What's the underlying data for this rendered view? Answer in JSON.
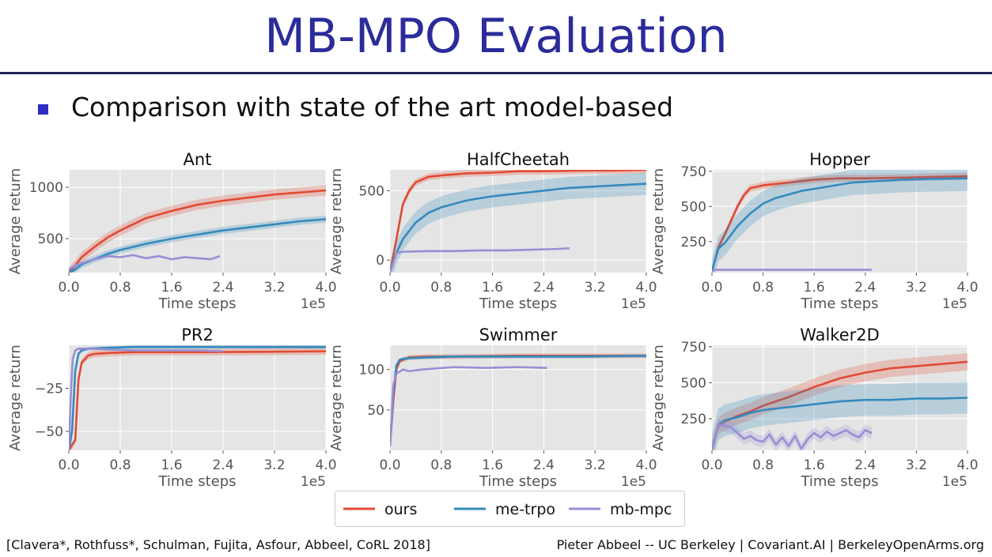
{
  "slide": {
    "title": "MB-MPO Evaluation",
    "bullet": "Comparison with state of the art model-based",
    "citation": "[Clavera*, Rothfuss*, Schulman, Fujita, Asfour, Abbeel, CoRL 2018]",
    "credit": "Pieter Abbeel -- UC Berkeley | Covariant.AI | BerkeleyOpenArms.org"
  },
  "legend": [
    {
      "name": "ours",
      "color": "#e24a33"
    },
    {
      "name": "me-trpo",
      "color": "#348abd"
    },
    {
      "name": "mb-mpc",
      "color": "#988ed5"
    }
  ],
  "chart_data": [
    {
      "type": "line",
      "title": "Ant",
      "xlabel": "Time steps",
      "ylabel": "Average return",
      "x_multiplier": "1e5",
      "xlim": [
        0.0,
        4.0
      ],
      "ylim": [
        170,
        1170
      ],
      "xticks": [
        0.0,
        0.8,
        1.6,
        2.4,
        3.2,
        4.0
      ],
      "xtick_labels": [
        "0.0",
        "0.8",
        "1.6",
        "2.4",
        "3.2",
        "4.0"
      ],
      "yticks": [
        500,
        1000
      ],
      "ytick_labels": [
        "500",
        "1000"
      ],
      "series": [
        {
          "name": "ours",
          "x": [
            0.0,
            0.1,
            0.2,
            0.4,
            0.6,
            0.8,
            1.0,
            1.2,
            1.6,
            2.0,
            2.4,
            2.8,
            3.2,
            3.6,
            4.0
          ],
          "y": [
            170,
            240,
            320,
            420,
            510,
            580,
            640,
            700,
            770,
            830,
            870,
            900,
            930,
            950,
            970
          ],
          "band": 50
        },
        {
          "name": "me-trpo",
          "x": [
            0.0,
            0.1,
            0.2,
            0.4,
            0.6,
            0.8,
            1.0,
            1.2,
            1.6,
            2.0,
            2.4,
            2.8,
            3.2,
            3.6,
            4.0
          ],
          "y": [
            170,
            200,
            250,
            300,
            350,
            390,
            420,
            450,
            500,
            540,
            580,
            610,
            640,
            670,
            690
          ],
          "band": 35
        },
        {
          "name": "mb-mpc",
          "x": [
            0.0,
            0.1,
            0.2,
            0.4,
            0.6,
            0.8,
            1.0,
            1.2,
            1.4,
            1.6,
            1.8,
            2.0,
            2.2,
            2.35
          ],
          "y": [
            200,
            240,
            260,
            300,
            330,
            320,
            340,
            310,
            330,
            300,
            320,
            310,
            300,
            330
          ],
          "band": 0
        }
      ]
    },
    {
      "type": "line",
      "title": "HalfCheetah",
      "xlabel": "Time steps",
      "ylabel": "Average return",
      "x_multiplier": "1e5",
      "xlim": [
        0.0,
        4.0
      ],
      "ylim": [
        -90,
        650
      ],
      "xticks": [
        0.0,
        0.8,
        1.6,
        2.4,
        3.2,
        4.0
      ],
      "xtick_labels": [
        "0.0",
        "0.8",
        "1.6",
        "2.4",
        "3.2",
        "4.0"
      ],
      "yticks": [
        0,
        500
      ],
      "ytick_labels": [
        "0",
        "500"
      ],
      "series": [
        {
          "name": "ours",
          "x": [
            0.0,
            0.1,
            0.2,
            0.3,
            0.4,
            0.6,
            0.8,
            1.2,
            1.6,
            2.0,
            2.4,
            3.0,
            3.5,
            4.0
          ],
          "y": [
            -90,
            150,
            400,
            500,
            560,
            600,
            610,
            625,
            630,
            640,
            640,
            645,
            645,
            650
          ],
          "band": 25
        },
        {
          "name": "me-trpo",
          "x": [
            0.0,
            0.1,
            0.2,
            0.4,
            0.6,
            0.8,
            1.2,
            1.6,
            2.0,
            2.4,
            2.8,
            3.2,
            3.6,
            4.0
          ],
          "y": [
            -90,
            50,
            150,
            270,
            340,
            380,
            430,
            460,
            480,
            500,
            520,
            530,
            540,
            550
          ],
          "band": 80
        },
        {
          "name": "mb-mpc",
          "x": [
            0.0,
            0.1,
            0.2,
            0.6,
            1.0,
            1.4,
            1.8,
            2.2,
            2.6,
            2.8
          ],
          "y": [
            -90,
            50,
            60,
            65,
            65,
            70,
            70,
            75,
            80,
            85
          ],
          "band": 0
        }
      ]
    },
    {
      "type": "line",
      "title": "Hopper",
      "xlabel": "Time steps",
      "ylabel": "Average return",
      "x_multiplier": "1e5",
      "xlim": [
        0.0,
        4.0
      ],
      "ylim": [
        30,
        760
      ],
      "xticks": [
        0.0,
        0.8,
        1.6,
        2.4,
        3.2,
        4.0
      ],
      "xtick_labels": [
        "0.0",
        "0.8",
        "1.6",
        "2.4",
        "3.2",
        "4.0"
      ],
      "yticks": [
        250,
        500,
        750
      ],
      "ytick_labels": [
        "250",
        "500",
        "750"
      ],
      "series": [
        {
          "name": "ours",
          "x": [
            0.0,
            0.1,
            0.2,
            0.3,
            0.4,
            0.5,
            0.6,
            0.8,
            1.2,
            1.6,
            2.0,
            2.4,
            3.0,
            3.5,
            4.0
          ],
          "y": [
            40,
            210,
            300,
            400,
            500,
            580,
            630,
            650,
            670,
            690,
            700,
            700,
            705,
            710,
            715
          ],
          "band": 25
        },
        {
          "name": "me-trpo",
          "x": [
            0.0,
            0.1,
            0.2,
            0.3,
            0.4,
            0.6,
            0.8,
            1.0,
            1.4,
            1.8,
            2.2,
            2.6,
            3.0,
            3.4,
            4.0
          ],
          "y": [
            40,
            200,
            240,
            300,
            360,
            450,
            520,
            560,
            610,
            640,
            670,
            680,
            690,
            695,
            700
          ],
          "band": 90
        },
        {
          "name": "mb-mpc",
          "x": [
            0.0,
            0.05,
            2.5
          ],
          "y": [
            40,
            50,
            50
          ],
          "band": 0
        }
      ]
    },
    {
      "type": "line",
      "title": "PR2",
      "xlabel": "Time steps",
      "ylabel": "Average return",
      "x_multiplier": "1e5",
      "xlim": [
        0.0,
        4.0
      ],
      "ylim": [
        -61,
        0
      ],
      "xticks": [
        0.0,
        0.8,
        1.6,
        2.4,
        3.2,
        4.0
      ],
      "xtick_labels": [
        "0.0",
        "0.8",
        "1.6",
        "2.4",
        "3.2",
        "4.0"
      ],
      "yticks": [
        -25,
        -50
      ],
      "ytick_labels": [
        "−25",
        "−50"
      ],
      "series": [
        {
          "name": "ours",
          "x": [
            0.0,
            0.1,
            0.15,
            0.2,
            0.3,
            0.4,
            0.6,
            1.0,
            2.0,
            3.0,
            4.0
          ],
          "y": [
            -61,
            -55,
            -20,
            -10,
            -6,
            -5,
            -4.5,
            -4,
            -4,
            -3.8,
            -3.5
          ],
          "band": 2
        },
        {
          "name": "me-trpo",
          "x": [
            0.0,
            0.05,
            0.1,
            0.15,
            0.2,
            0.3,
            0.6,
            1.0,
            2.0,
            3.0,
            4.0
          ],
          "y": [
            -61,
            -50,
            -15,
            -5,
            -3,
            -2,
            -1.5,
            -1,
            -1,
            -1,
            -1
          ],
          "band": 1
        },
        {
          "name": "mb-mpc",
          "x": [
            0.0,
            0.03,
            0.06,
            0.1,
            0.15,
            0.3,
            1.0,
            2.0,
            2.4
          ],
          "y": [
            -61,
            -30,
            -8,
            -3,
            -2,
            -2,
            -3,
            -3,
            -3.5
          ],
          "band": 0
        }
      ]
    },
    {
      "type": "line",
      "title": "Swimmer",
      "xlabel": "Time steps",
      "ylabel": "Average return",
      "x_multiplier": "1e5",
      "xlim": [
        0.0,
        4.0
      ],
      "ylim": [
        0,
        130
      ],
      "xticks": [
        0.0,
        0.8,
        1.6,
        2.4,
        3.2,
        4.0
      ],
      "xtick_labels": [
        "0.0",
        "0.8",
        "1.6",
        "2.4",
        "3.2",
        "4.0"
      ],
      "yticks": [
        50,
        100
      ],
      "ytick_labels": [
        "50",
        "100"
      ],
      "series": [
        {
          "name": "ours",
          "x": [
            0.0,
            0.05,
            0.1,
            0.15,
            0.2,
            0.3,
            0.6,
            1.0,
            2.0,
            3.0,
            4.0
          ],
          "y": [
            5,
            60,
            100,
            110,
            112,
            115,
            116,
            116,
            117,
            117,
            117
          ],
          "band": 3
        },
        {
          "name": "me-trpo",
          "x": [
            0.0,
            0.05,
            0.1,
            0.15,
            0.2,
            0.3,
            0.6,
            1.0,
            2.0,
            3.0,
            4.0
          ],
          "y": [
            5,
            70,
            105,
            112,
            113,
            114,
            115,
            116,
            116,
            116,
            117
          ],
          "band": 2
        },
        {
          "name": "mb-mpc",
          "x": [
            0.0,
            0.05,
            0.1,
            0.2,
            0.3,
            0.5,
            1.0,
            1.5,
            2.0,
            2.45
          ],
          "y": [
            5,
            80,
            95,
            100,
            98,
            100,
            103,
            102,
            103,
            102
          ],
          "band": 0
        }
      ]
    },
    {
      "type": "line",
      "title": "Walker2D",
      "xlabel": "Time steps",
      "ylabel": "Average return",
      "x_multiplier": "1e5",
      "xlim": [
        0.0,
        4.0
      ],
      "ylim": [
        30,
        760
      ],
      "xticks": [
        0.0,
        0.8,
        1.6,
        2.4,
        3.2,
        4.0
      ],
      "xtick_labels": [
        "0.0",
        "0.8",
        "1.6",
        "2.4",
        "3.2",
        "4.0"
      ],
      "yticks": [
        250,
        500,
        750
      ],
      "ytick_labels": [
        "250",
        "500",
        "750"
      ],
      "series": [
        {
          "name": "ours",
          "x": [
            0.0,
            0.1,
            0.2,
            0.4,
            0.6,
            0.8,
            1.2,
            1.6,
            2.0,
            2.4,
            2.8,
            3.2,
            3.6,
            4.0
          ],
          "y": [
            40,
            200,
            230,
            270,
            300,
            340,
            400,
            470,
            530,
            570,
            600,
            615,
            630,
            645
          ],
          "band": 60
        },
        {
          "name": "me-trpo",
          "x": [
            0.0,
            0.1,
            0.2,
            0.4,
            0.6,
            0.8,
            1.2,
            1.6,
            2.0,
            2.4,
            2.8,
            3.2,
            3.6,
            4.0
          ],
          "y": [
            40,
            210,
            240,
            260,
            290,
            310,
            330,
            350,
            370,
            380,
            380,
            390,
            390,
            395
          ],
          "band": 110
        },
        {
          "name": "mb-mpc",
          "x": [
            0.0,
            0.1,
            0.2,
            0.3,
            0.4,
            0.5,
            0.6,
            0.7,
            0.8,
            0.9,
            1.0,
            1.1,
            1.2,
            1.3,
            1.4,
            1.5,
            1.6,
            1.7,
            1.8,
            1.9,
            2.0,
            2.1,
            2.2,
            2.3,
            2.4,
            2.5
          ],
          "y": [
            40,
            210,
            200,
            190,
            150,
            110,
            130,
            100,
            90,
            140,
            70,
            120,
            60,
            130,
            40,
            110,
            150,
            120,
            160,
            130,
            150,
            170,
            140,
            120,
            170,
            150
          ],
          "band": 40
        }
      ]
    }
  ]
}
